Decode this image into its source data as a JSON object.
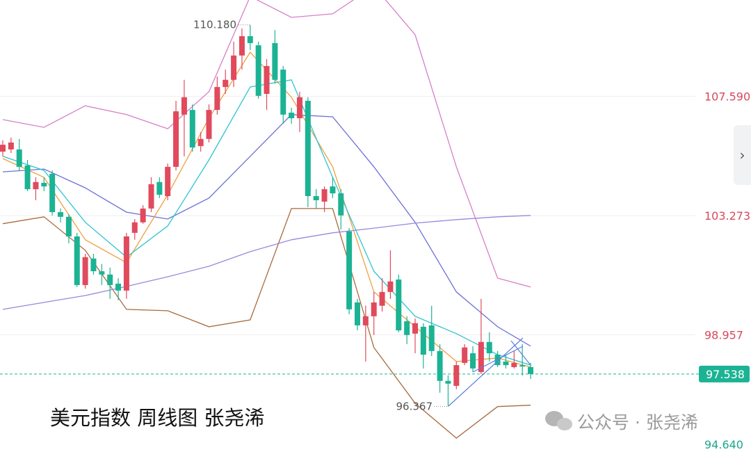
{
  "chart_data": {
    "type": "candlestick",
    "caption": "美元指数 周线图 张尧浠",
    "watermark": "公众号 · 张尧浠",
    "ylim": [
      94.64,
      111.08
    ],
    "yticks": [
      {
        "value": 107.59,
        "label": "107.590"
      },
      103.273,
      98.957,
      {
        "value": 94.64,
        "label": "94.640"
      }
    ],
    "grid": true,
    "up_color": "#e04a5c",
    "down_color": "#1bb394",
    "last_price": 97.538,
    "max_label": {
      "value": 110.18,
      "label": "110.180"
    },
    "min_label": 96.367,
    "open": [
      105.59,
      105.67,
      105.67,
      105.09,
      104.23,
      104.46,
      104.79,
      103.4,
      103.23,
      102.52,
      100.76,
      101.72,
      101.26,
      101.14,
      100.81,
      100.56,
      102.65,
      103.03,
      103.53,
      104.49,
      103.98,
      105.04,
      106.93,
      107.1,
      105.79,
      106.05,
      107.1,
      107.93,
      108.19,
      109.07,
      109.77,
      109.44,
      107.68,
      109.52,
      108.56,
      107.0,
      106.8,
      107.43,
      103.98,
      103.78,
      104.33,
      104.08,
      102.7,
      100.13,
      99.3,
      99.63,
      100.01,
      100.51,
      100.96,
      99.45,
      99.0,
      99.25,
      99.3,
      98.37,
      97.29,
      97.11,
      97.94,
      98.29,
      97.61,
      98.7,
      98.24,
      97.99,
      97.79,
      97.86,
      97.79
    ],
    "high": [
      106.0,
      106.1,
      106.05,
      105.29,
      104.66,
      104.66,
      104.91,
      103.53,
      103.33,
      102.65,
      101.89,
      101.89,
      101.52,
      101.39,
      101.01,
      102.65,
      103.15,
      103.65,
      104.66,
      104.66,
      105.16,
      107.43,
      108.19,
      107.3,
      106.3,
      107.3,
      108.31,
      108.56,
      109.57,
      110.05,
      110.18,
      109.57,
      108.94,
      109.99,
      108.69,
      107.18,
      107.76,
      107.56,
      104.23,
      104.33,
      104.66,
      104.23,
      102.82,
      100.26,
      100.01,
      100.51,
      101.01,
      102.02,
      101.14,
      99.63,
      99.55,
      99.38,
      100.01,
      98.62,
      97.49,
      97.99,
      98.62,
      98.55,
      100.26,
      99.05,
      98.37,
      98.24,
      98.37,
      98.62,
      97.94
    ],
    "low": [
      105.42,
      105.54,
      104.91,
      104.16,
      103.83,
      104.16,
      103.28,
      103.03,
      102.27,
      100.69,
      100.63,
      101.14,
      100.76,
      100.26,
      100.21,
      100.26,
      102.4,
      102.98,
      103.4,
      103.91,
      103.83,
      104.91,
      105.42,
      105.59,
      105.59,
      105.92,
      106.93,
      107.68,
      107.93,
      108.56,
      109.27,
      107.51,
      107.1,
      108.06,
      106.6,
      106.6,
      106.3,
      103.58,
      103.53,
      103.4,
      103.91,
      102.77,
      99.7,
      99.12,
      97.99,
      98.95,
      99.8,
      100.26,
      99.05,
      98.62,
      98.29,
      97.74,
      98.19,
      96.86,
      96.367,
      96.99,
      97.86,
      97.61,
      97.54,
      97.99,
      97.79,
      97.74,
      97.74,
      97.49,
      97.36
    ],
    "close": [
      105.84,
      105.92,
      105.04,
      104.23,
      104.49,
      104.33,
      103.4,
      103.23,
      102.52,
      100.76,
      101.77,
      101.26,
      101.14,
      100.76,
      100.56,
      102.52,
      103.03,
      103.53,
      104.41,
      104.03,
      105.04,
      107.05,
      107.56,
      105.74,
      106.05,
      107.1,
      107.93,
      108.19,
      109.07,
      109.77,
      109.52,
      107.61,
      108.69,
      108.19,
      106.93,
      106.8,
      107.56,
      103.98,
      103.83,
      104.23,
      104.08,
      103.28,
      99.88,
      99.3,
      99.63,
      100.13,
      100.51,
      100.89,
      99.12,
      98.95,
      99.38,
      98.24,
      98.37,
      97.29,
      97.19,
      97.86,
      98.5,
      97.74,
      98.7,
      98.29,
      97.86,
      97.86,
      97.94,
      97.81,
      97.538
    ],
    "overlays": [
      {
        "color": "#d77fc7",
        "x": [
          0,
          5,
          10,
          15,
          20,
          25,
          30,
          35,
          40,
          45,
          50,
          55,
          60,
          64
        ],
        "values": [
          106.75,
          106.47,
          107.25,
          106.93,
          106.42,
          107.76,
          111.21,
          110.45,
          110.58,
          111.58,
          109.82,
          105.04,
          101.01,
          100.69
        ]
      },
      {
        "color": "#6b6fd6",
        "x": [
          0,
          5,
          10,
          15,
          20,
          25,
          30,
          35,
          40,
          45,
          50,
          55,
          60,
          64
        ],
        "values": [
          104.86,
          104.96,
          104.28,
          103.4,
          103.15,
          103.91,
          105.42,
          106.93,
          106.85,
          105.04,
          103.03,
          100.51,
          99.25,
          98.55
        ]
      },
      {
        "color": "#a86a3c",
        "x": [
          0,
          5,
          10,
          15,
          20,
          25,
          30,
          35,
          40,
          45,
          50,
          55,
          60,
          64
        ],
        "values": [
          102.98,
          103.23,
          102.02,
          99.88,
          99.83,
          99.25,
          99.5,
          103.53,
          103.53,
          98.5,
          96.48,
          95.22,
          96.36,
          96.41
        ]
      },
      {
        "color": "#f0a040",
        "x": [
          0,
          5,
          10,
          15,
          20,
          25,
          30,
          35,
          40,
          45,
          50,
          55,
          60,
          64
        ],
        "values": [
          105.34,
          104.66,
          102.4,
          101.57,
          104.03,
          106.8,
          109.19,
          107.56,
          105.04,
          100.51,
          99.25,
          97.99,
          98.12,
          97.79
        ]
      },
      {
        "color": "#2ec4d0",
        "x": [
          0,
          5,
          10,
          15,
          20,
          25,
          30,
          35,
          40,
          45,
          50,
          55,
          60,
          64
        ],
        "values": [
          105.42,
          104.91,
          103.03,
          101.77,
          102.9,
          105.29,
          107.93,
          108.19,
          104.66,
          101.26,
          99.63,
          99.0,
          98.24,
          97.86
        ]
      },
      {
        "color": "#9a86dc",
        "x": [
          0,
          5,
          10,
          15,
          20,
          25,
          30,
          35,
          40,
          45,
          50,
          55,
          60,
          64
        ],
        "values": [
          99.88,
          100.13,
          100.38,
          100.71,
          101.06,
          101.44,
          101.97,
          102.4,
          102.65,
          102.82,
          103.0,
          103.13,
          103.23,
          103.28
        ]
      }
    ]
  }
}
